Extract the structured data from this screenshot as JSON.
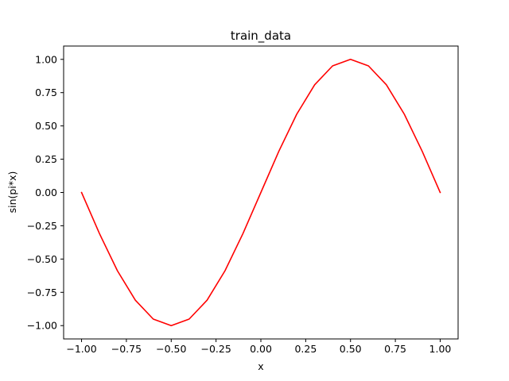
{
  "chart_data": {
    "type": "line",
    "title": "train_data",
    "xlabel": "x",
    "ylabel": "sin(pi*x)",
    "xlim": [
      -1.1,
      1.1
    ],
    "ylim": [
      -1.1,
      1.1
    ],
    "grid": false,
    "legend": "none",
    "x_ticks": [
      -1.0,
      -0.75,
      -0.5,
      -0.25,
      0.0,
      0.25,
      0.5,
      0.75,
      1.0
    ],
    "x_tick_labels": [
      "−1.00",
      "−0.75",
      "−0.50",
      "−0.25",
      "0.00",
      "0.25",
      "0.50",
      "0.75",
      "1.00"
    ],
    "y_ticks": [
      -1.0,
      -0.75,
      -0.5,
      -0.25,
      0.0,
      0.25,
      0.5,
      0.75,
      1.0
    ],
    "y_tick_labels": [
      "−1.00",
      "−0.75",
      "−0.50",
      "−0.25",
      "0.00",
      "0.25",
      "0.50",
      "0.75",
      "1.00"
    ],
    "series": [
      {
        "color": "#ff0000",
        "x": [
          -1.0,
          -0.9,
          -0.8,
          -0.7,
          -0.6,
          -0.5,
          -0.4,
          -0.3,
          -0.2,
          -0.1,
          0.0,
          0.1,
          0.2,
          0.3,
          0.4,
          0.5,
          0.6,
          0.7,
          0.8,
          0.9,
          1.0
        ],
        "y": [
          0.0,
          -0.309,
          -0.588,
          -0.809,
          -0.951,
          -1.0,
          -0.951,
          -0.809,
          -0.588,
          -0.309,
          0.0,
          0.309,
          0.588,
          0.809,
          0.951,
          1.0,
          0.951,
          0.809,
          0.588,
          0.309,
          0.0
        ]
      }
    ]
  }
}
